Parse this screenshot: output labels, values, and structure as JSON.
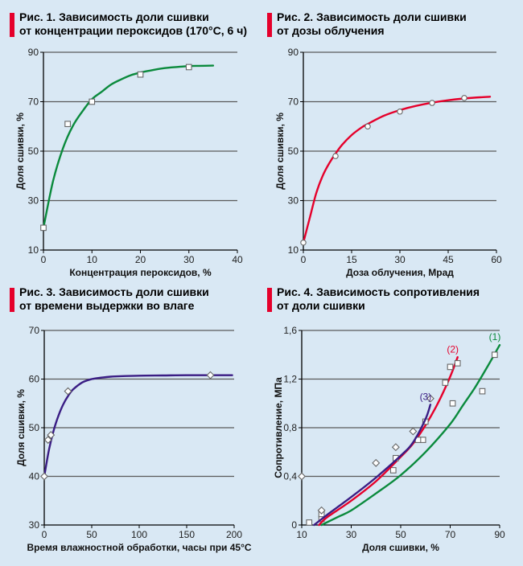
{
  "colors": {
    "background": "#d9e8f4",
    "title_bar": "#e5002b",
    "grid": "#5a5a5a",
    "axis": "#000000",
    "green": "#0a8a3c",
    "red": "#e5002b",
    "purple": "#3a1d84"
  },
  "chart_data": [
    {
      "type": "scatter",
      "title_lines": [
        "Рис. 1. Зависимость доли сшивки",
        "от концентрации пероксидов (170°С, 6 ч)"
      ],
      "xlabel": "Концентрация пероксидов, %",
      "ylabel": "Доля сшивки, %",
      "xlim": [
        0,
        40
      ],
      "ylim": [
        10,
        90
      ],
      "xticks": [
        0,
        10,
        20,
        30,
        40
      ],
      "yticks": [
        10,
        30,
        50,
        70,
        90
      ],
      "grid": "horizontal",
      "points": {
        "marker": "square",
        "x": [
          0,
          5,
          10,
          20,
          30
        ],
        "y": [
          19,
          61,
          70,
          81,
          84
        ]
      },
      "curves": [
        {
          "name": "fit",
          "color": "green",
          "x": [
            0,
            2,
            4,
            6,
            8,
            10,
            12,
            14,
            16,
            18,
            20,
            22,
            24,
            26,
            28,
            30,
            32,
            35
          ],
          "y": [
            19,
            38,
            51,
            60,
            66,
            71,
            74,
            77,
            79,
            80.7,
            81.8,
            82.6,
            83.3,
            83.8,
            84.1,
            84.4,
            84.5,
            84.6
          ]
        }
      ]
    },
    {
      "type": "scatter",
      "title_lines": [
        "Рис. 2. Зависимость доли сшивки",
        "от дозы облучения"
      ],
      "xlabel": "Доза облучения, Мрад",
      "ylabel": "Доля сшивки, %",
      "xlim": [
        0,
        60
      ],
      "ylim": [
        10,
        90
      ],
      "xticks": [
        0,
        15,
        30,
        45,
        60
      ],
      "yticks": [
        10,
        30,
        50,
        70,
        90
      ],
      "grid": "horizontal",
      "points": {
        "marker": "circle",
        "x": [
          0,
          10,
          20,
          30,
          40,
          50
        ],
        "y": [
          13,
          48,
          60,
          66,
          69.5,
          71.5
        ]
      },
      "curves": [
        {
          "name": "fit",
          "color": "red",
          "x": [
            0,
            2,
            4,
            6,
            8,
            10,
            12,
            15,
            18,
            20,
            25,
            30,
            35,
            40,
            45,
            50,
            55,
            58
          ],
          "y": [
            13,
            23,
            33,
            40,
            45,
            49,
            52.5,
            56.5,
            59.5,
            61,
            64.3,
            66.6,
            68.3,
            69.6,
            70.6,
            71.3,
            71.8,
            72
          ]
        }
      ]
    },
    {
      "type": "scatter",
      "title_lines": [
        "Рис. 3. Зависимость доли сшивки",
        "от времени выдержки во влаге"
      ],
      "xlabel": "Время влажностной обработки, часы при 45°С",
      "ylabel": "Доля сшивки, %",
      "xlim": [
        0,
        200
      ],
      "ylim": [
        30,
        70
      ],
      "xticks": [
        0,
        50,
        100,
        150,
        200
      ],
      "yticks": [
        30,
        40,
        50,
        60,
        70
      ],
      "grid": "horizontal",
      "points": {
        "marker": "diamond",
        "x": [
          0,
          4,
          7,
          25,
          175
        ],
        "y": [
          40,
          47.5,
          48.5,
          57.5,
          60.8
        ]
      },
      "curves": [
        {
          "name": "fit",
          "color": "purple",
          "x": [
            0,
            5,
            10,
            15,
            20,
            25,
            30,
            40,
            50,
            60,
            70,
            80,
            100,
            125,
            150,
            175,
            198
          ],
          "y": [
            40,
            45.5,
            49.5,
            52.5,
            54.8,
            56.5,
            57.8,
            59.3,
            60,
            60.3,
            60.5,
            60.6,
            60.7,
            60.75,
            60.8,
            60.8,
            60.8
          ]
        }
      ]
    },
    {
      "type": "scatter",
      "title_lines": [
        "Рис. 4. Зависимость сопротивления",
        "от доли сшивки"
      ],
      "xlabel": "Доля сшивки, %",
      "ylabel": "Сопротивление, МПа",
      "xlim": [
        10,
        90
      ],
      "ylim": [
        0,
        1.6
      ],
      "xticks": [
        10,
        30,
        50,
        70,
        90
      ],
      "xtick_labels": [
        "10",
        "30",
        "50",
        "70",
        "90"
      ],
      "yticks": [
        0,
        0.4,
        0.8,
        1.2,
        1.6
      ],
      "ytick_labels": [
        "0",
        "0,4",
        "0,8",
        "1,2",
        "1,6"
      ],
      "grid": "horizontal",
      "series": [
        {
          "name": "(1)",
          "color": "green",
          "marker": "square",
          "points_x": [
            18,
            47,
            59,
            71,
            83,
            88
          ],
          "points_y": [
            0.05,
            0.45,
            0.7,
            1.0,
            1.1,
            1.4
          ],
          "curve_x": [
            18,
            25,
            30,
            40,
            50,
            60,
            70,
            75,
            80,
            85,
            90
          ],
          "curve_y": [
            0,
            0.07,
            0.12,
            0.26,
            0.41,
            0.6,
            0.83,
            0.98,
            1.13,
            1.3,
            1.48
          ]
        },
        {
          "name": "(2)",
          "color": "red",
          "marker": "square",
          "points_x": [
            13,
            18,
            48,
            57,
            60,
            68,
            70,
            73
          ],
          "points_y": [
            0.02,
            0.09,
            0.55,
            0.7,
            0.85,
            1.17,
            1.3,
            1.33
          ],
          "curve_x": [
            17,
            20,
            30,
            40,
            50,
            55,
            60,
            65,
            70,
            73
          ],
          "curve_y": [
            0,
            0.06,
            0.2,
            0.36,
            0.56,
            0.67,
            0.82,
            1.0,
            1.22,
            1.38
          ]
        },
        {
          "name": "(3)",
          "color": "purple",
          "marker": "diamond",
          "points_x": [
            10,
            18,
            40,
            48,
            55,
            62
          ],
          "points_y": [
            0.4,
            0.12,
            0.51,
            0.64,
            0.77,
            1.04
          ],
          "curve_x": [
            15,
            20,
            30,
            40,
            50,
            55,
            60,
            62
          ],
          "curve_y": [
            0,
            0.08,
            0.23,
            0.39,
            0.57,
            0.68,
            0.87,
            0.99
          ]
        }
      ]
    }
  ]
}
